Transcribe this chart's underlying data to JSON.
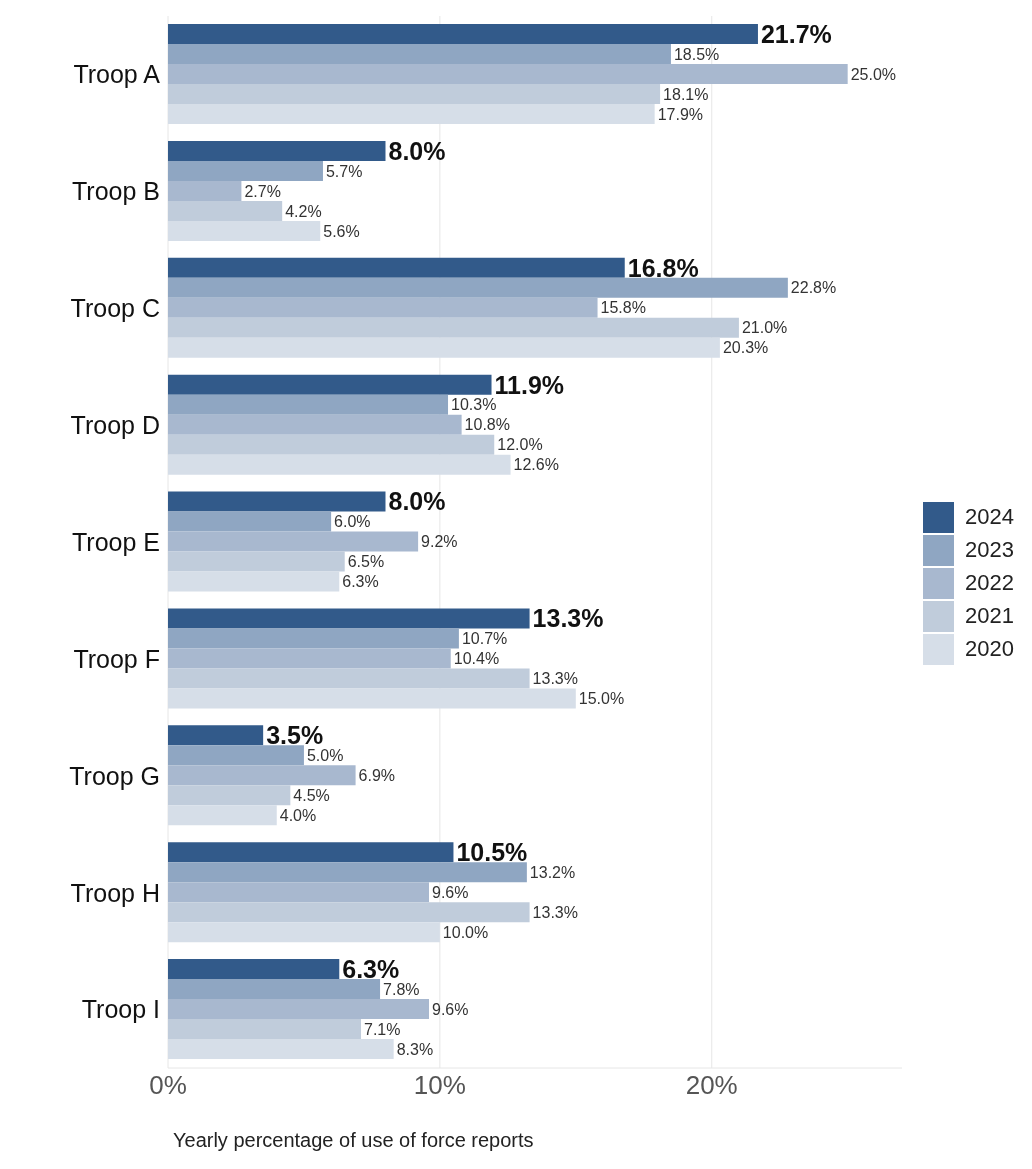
{
  "chart_data": {
    "type": "bar",
    "orientation": "horizontal",
    "xlabel": "Yearly percentage of use of force reports",
    "categories": [
      "Troop A",
      "Troop B",
      "Troop C",
      "Troop D",
      "Troop E",
      "Troop F",
      "Troop G",
      "Troop H",
      "Troop I"
    ],
    "series": [
      {
        "name": "2024",
        "color": "#325a8a",
        "values": [
          21.7,
          8.0,
          16.8,
          11.9,
          8.0,
          13.3,
          3.5,
          10.5,
          6.3
        ],
        "value_labels": [
          "21.7%",
          "8.0%",
          "16.8%",
          "11.9%",
          "8.0%",
          "13.3%",
          "3.5%",
          "10.5%",
          "6.3%"
        ]
      },
      {
        "name": "2023",
        "color": "#8fa6c2",
        "values": [
          18.5,
          5.7,
          22.8,
          10.3,
          6.0,
          10.7,
          5.0,
          13.2,
          7.8
        ],
        "value_labels": [
          "18.5%",
          "5.7%",
          "22.8%",
          "10.3%",
          "6.0%",
          "10.7%",
          "5.0%",
          "13.2%",
          "7.8%"
        ]
      },
      {
        "name": "2022",
        "color": "#a8b8cf",
        "values": [
          25.0,
          2.7,
          15.8,
          10.8,
          9.2,
          10.4,
          6.9,
          9.6,
          9.6
        ],
        "value_labels": [
          "25.0%",
          "2.7%",
          "15.8%",
          "10.8%",
          "9.2%",
          "10.4%",
          "6.9%",
          "9.6%",
          "9.6%"
        ]
      },
      {
        "name": "2021",
        "color": "#c0ccdb",
        "values": [
          18.1,
          4.2,
          21.0,
          12.0,
          6.5,
          13.3,
          4.5,
          13.3,
          7.1
        ],
        "value_labels": [
          "18.1%",
          "4.2%",
          "21.0%",
          "12.0%",
          "6.5%",
          "13.3%",
          "4.5%",
          "13.3%",
          "7.1%"
        ]
      },
      {
        "name": "2020",
        "color": "#d6dee8",
        "values": [
          17.9,
          5.6,
          20.3,
          12.6,
          6.3,
          15.0,
          4.0,
          10.0,
          8.3
        ],
        "value_labels": [
          "17.9%",
          "5.6%",
          "20.3%",
          "12.6%",
          "6.3%",
          "15.0%",
          "4.0%",
          "10.0%",
          "8.3%"
        ]
      }
    ],
    "xlim": [
      0,
      27
    ],
    "xticks": [
      {
        "value": 0,
        "label": "0%"
      },
      {
        "value": 10,
        "label": "10%"
      },
      {
        "value": 20,
        "label": "20%"
      }
    ],
    "grid": "x",
    "legend": "right"
  }
}
